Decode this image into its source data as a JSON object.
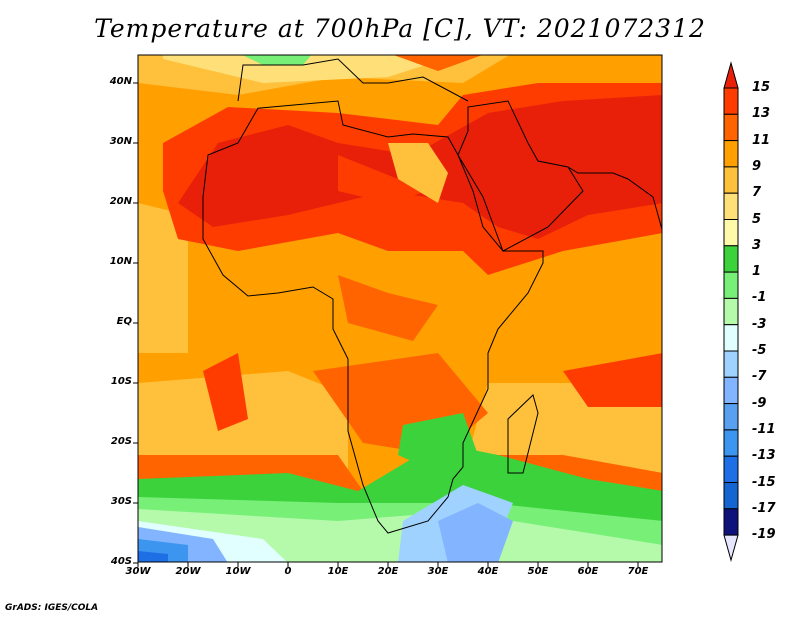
{
  "title": "Temperature at 700hPa [C], VT: 2021072312",
  "credit": "GrADS: IGES/COLA",
  "lat_labels": [
    "40N",
    "30N",
    "20N",
    "10N",
    "EQ",
    "10S",
    "20S",
    "30S",
    "40S"
  ],
  "lon_labels": [
    "30W",
    "20W",
    "10W",
    "0",
    "10E",
    "20E",
    "30E",
    "40E",
    "50E",
    "60E",
    "70E"
  ],
  "colorbar": {
    "labels": [
      "15",
      "13",
      "11",
      "9",
      "7",
      "5",
      "3",
      "1",
      "-1",
      "-3",
      "-5",
      "-7",
      "-9",
      "-11",
      "-13",
      "-15",
      "-17",
      "-19"
    ],
    "colors": [
      "#e8200a",
      "#ff3c00",
      "#ff6400",
      "#ffa000",
      "#ffc03c",
      "#ffe078",
      "#fffaaa",
      "#3cd23c",
      "#78f078",
      "#b4faaa",
      "#e1ffff",
      "#a0d2ff",
      "#82b4ff",
      "#5aa0f0",
      "#3c96f0",
      "#1e6ee6",
      "#1464d2",
      "#0f127a",
      "#e6e6ff"
    ]
  }
}
